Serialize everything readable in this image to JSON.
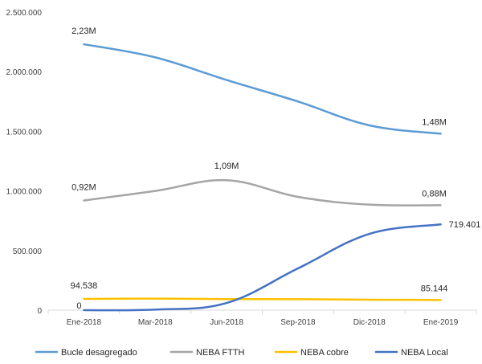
{
  "chart_data": {
    "type": "line",
    "categories": [
      "Ene-2018",
      "Mar-2018",
      "Jun-2018",
      "Sep-2018",
      "Dic-2018",
      "Ene-2019"
    ],
    "ylim": [
      0,
      2500000
    ],
    "yticks": [
      0,
      500000,
      1000000,
      1500000,
      2000000,
      2500000
    ],
    "ytick_labels": [
      "0",
      "500.000",
      "1.000.000",
      "1.500.000",
      "2.000.000",
      "2.500.000"
    ],
    "grid": false,
    "legend_position": "bottom",
    "series": [
      {
        "name": "Bucle desagregado",
        "color": "#5B9BD5",
        "values": [
          2230000,
          2120000,
          1930000,
          1750000,
          1550000,
          1480000
        ],
        "labels": [
          {
            "index": 0,
            "text": "2,23M"
          },
          {
            "index": 5,
            "text": "1,48M"
          }
        ]
      },
      {
        "name": "NEBA FTTH",
        "color": "#A5A5A5",
        "values": [
          920000,
          1000000,
          1090000,
          950000,
          885000,
          880000
        ],
        "labels": [
          {
            "index": 0,
            "text": "0,92M"
          },
          {
            "index": 2,
            "text": "1,09M"
          },
          {
            "index": 5,
            "text": "0,88M"
          }
        ]
      },
      {
        "name": "NEBA cobre",
        "color": "#FFC000",
        "values": [
          94538,
          97000,
          93000,
          92000,
          88000,
          85144
        ],
        "labels": [
          {
            "index": 0,
            "text": "94.538"
          },
          {
            "index": 5,
            "text": "85.144"
          }
        ]
      },
      {
        "name": "NEBA Local",
        "color": "#4472C4",
        "values": [
          0,
          5000,
          60000,
          350000,
          640000,
          719401
        ],
        "labels": [
          {
            "index": 0,
            "text": "0"
          },
          {
            "index": 5,
            "text": "719.401"
          }
        ]
      }
    ]
  }
}
